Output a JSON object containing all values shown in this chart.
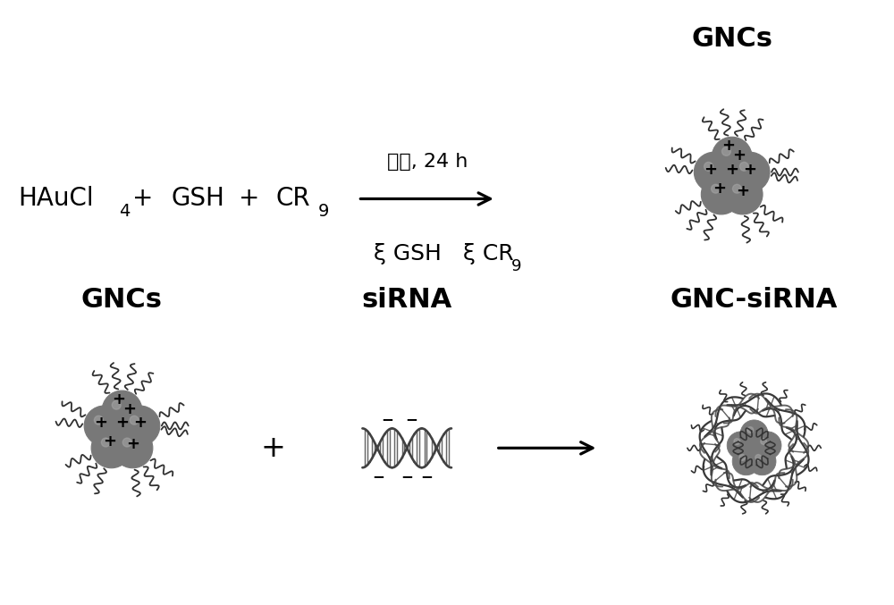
{
  "bg_color": "#ffffff",
  "text_color": "#000000",
  "sphere_color": "#787878",
  "sphere_edge": "#404040",
  "highlight_color": "#b0b0b0",
  "strand_color": "#303030",
  "arrow_color": "#000000",
  "label_gncs_top": "GNCs",
  "label_gncs_bot": "GNCs",
  "label_sirna": "siRNA",
  "label_gnc_sirna": "GNC-siRNA",
  "reaction_text": "加热, 24 h",
  "haucl4_main": "HAuCl",
  "haucl4_sub": "4",
  "plus": "+",
  "gsh": "GSH",
  "cr_main": "CR",
  "cr_sub": "9",
  "legend_gsh": "ξ GSH",
  "legend_cr": "ξ CR",
  "legend_cr_sub": "9",
  "figsize": [
    10.0,
    6.77
  ],
  "dpi": 100,
  "xlim": [
    0,
    10
  ],
  "ylim": [
    0,
    6.77
  ]
}
